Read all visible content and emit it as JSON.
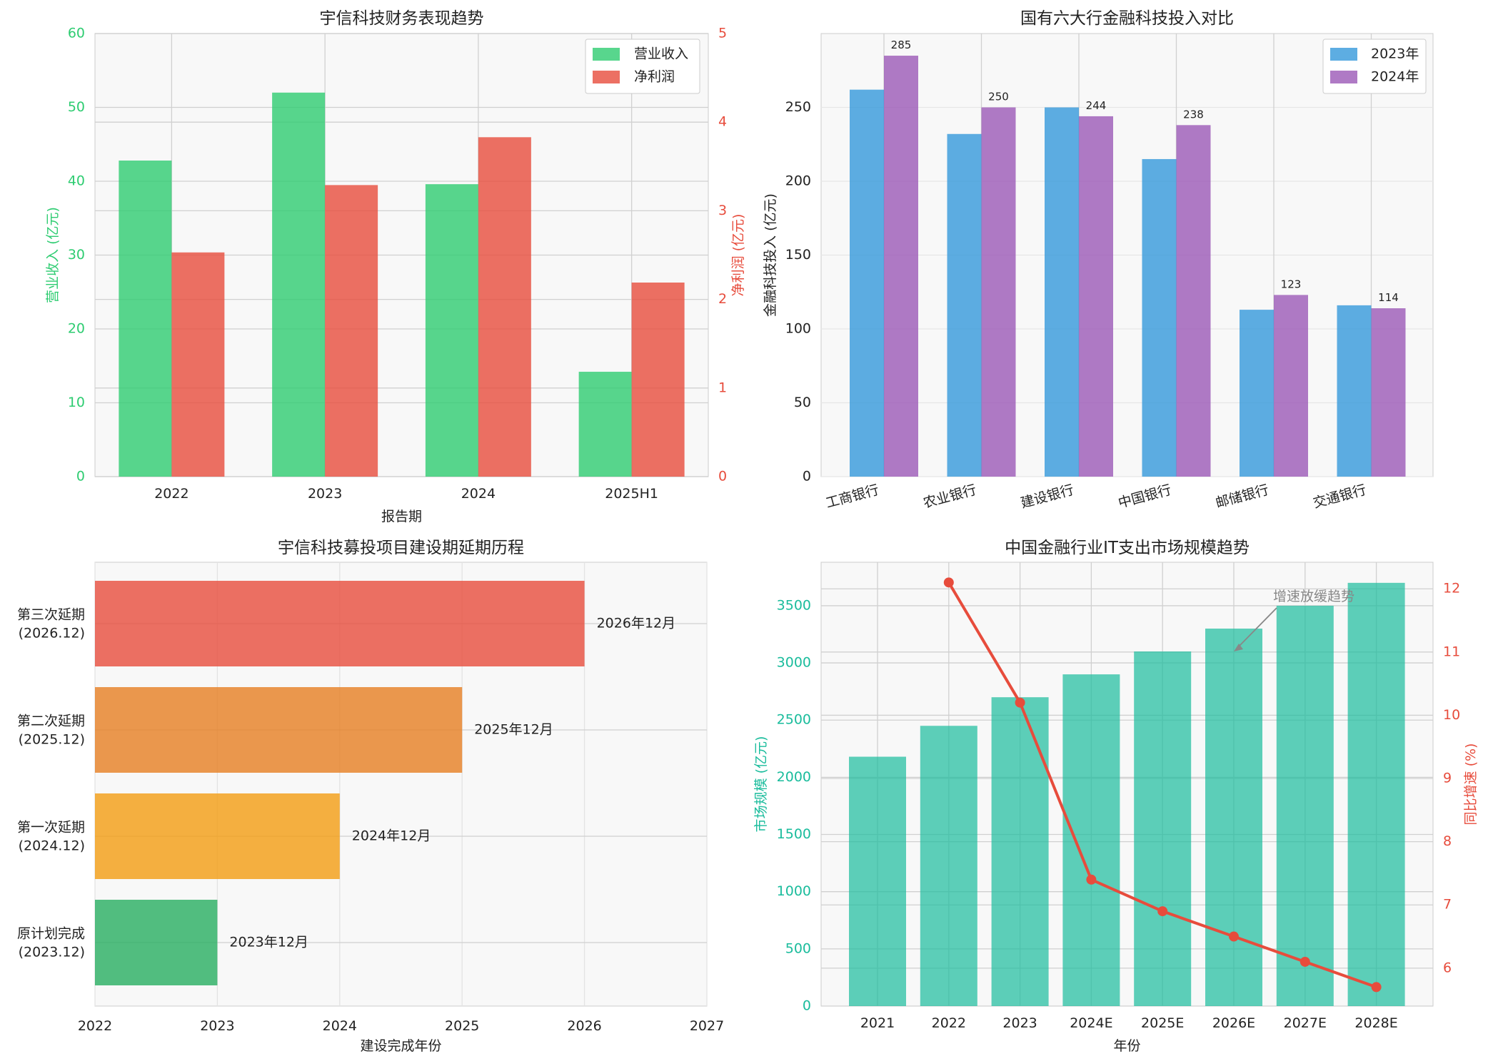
{
  "chart_data": [
    {
      "type": "bar",
      "title": "宇信科技财务表现趋势",
      "xlabel": "报告期",
      "ylabel_left": "营业收入 (亿元)",
      "ylabel_right": "净利润 (亿元)",
      "categories": [
        "2022",
        "2023",
        "2024",
        "2025H1"
      ],
      "series": [
        {
          "name": "营业收入",
          "axis": "left",
          "color": "#2ecc71",
          "values": [
            42.8,
            52.0,
            39.6,
            14.2
          ]
        },
        {
          "name": "净利润",
          "axis": "right",
          "color": "#e74c3c",
          "values": [
            2.53,
            3.29,
            3.83,
            2.19
          ]
        }
      ],
      "ylim_left": [
        0,
        60
      ],
      "yticks_left": [
        "0",
        "10",
        "20",
        "30",
        "40",
        "50",
        "60"
      ],
      "ylim_right": [
        0,
        5
      ],
      "yticks_right": [
        "0",
        "1",
        "2",
        "3",
        "4",
        "5"
      ],
      "legend": "top-right",
      "grid": true
    },
    {
      "type": "bar",
      "title": "国有六大行金融科技投入对比",
      "xlabel": "",
      "ylabel": "金融科技投入 (亿元)",
      "categories": [
        "工商银行",
        "农业银行",
        "建设银行",
        "中国银行",
        "邮储银行",
        "交通银行"
      ],
      "series": [
        {
          "name": "2023年",
          "color": "#3498db",
          "values": [
            262,
            232,
            250,
            215,
            113,
            116
          ]
        },
        {
          "name": "2024年",
          "color": "#9b59b6",
          "values": [
            285,
            250,
            244,
            238,
            123,
            114
          ],
          "labels": [
            "285",
            "250",
            "244",
            "238",
            "123",
            "114"
          ]
        }
      ],
      "ylim": [
        0,
        300
      ],
      "yticks": [
        "0",
        "50",
        "100",
        "150",
        "200",
        "250"
      ],
      "legend": "top-right",
      "grid": true
    },
    {
      "type": "bar",
      "orientation": "horizontal",
      "title": "宇信科技募投项目建设期延期历程",
      "xlabel": "建设完成年份",
      "categories": [
        {
          "line1": "原计划完成",
          "line2": "(2023.12)"
        },
        {
          "line1": "第一次延期",
          "line2": "(2024.12)"
        },
        {
          "line1": "第二次延期",
          "line2": "(2025.12)"
        },
        {
          "line1": "第三次延期",
          "line2": "(2026.12)"
        }
      ],
      "values": [
        2023,
        2024,
        2025,
        2026
      ],
      "colors": [
        "#27ae60",
        "#f39c12",
        "#e67e22",
        "#e74c3c"
      ],
      "value_labels": [
        "2023年12月",
        "2024年12月",
        "2025年12月",
        "2026年12月"
      ],
      "xlim": [
        2022,
        2027
      ],
      "xticks": [
        "2022",
        "2023",
        "2024",
        "2025",
        "2026",
        "2027"
      ],
      "grid": true
    },
    {
      "type": "bar+line",
      "title": "中国金融行业IT支出市场规模趋势",
      "xlabel": "年份",
      "ylabel_left": "市场规模 (亿元)",
      "ylabel_right": "同比增速 (%)",
      "categories": [
        "2021",
        "2022",
        "2023",
        "2024E",
        "2025E",
        "2026E",
        "2027E",
        "2028E"
      ],
      "bars": {
        "name": "市场规模",
        "color": "#1abc9c",
        "values": [
          2180,
          2450,
          2700,
          2900,
          3100,
          3300,
          3500,
          3700
        ]
      },
      "line": {
        "name": "同比增速",
        "color": "#e74c3c",
        "x": [
          "2022",
          "2023",
          "2024E",
          "2025E",
          "2026E",
          "2027E",
          "2028E"
        ],
        "values": [
          12.1,
          10.2,
          7.4,
          6.9,
          6.5,
          6.1,
          5.7
        ]
      },
      "ylim_left": [
        0,
        3880
      ],
      "yticks_left": [
        "0",
        "500",
        "1000",
        "1500",
        "2000",
        "2500",
        "3000",
        "3500"
      ],
      "ylim_right": [
        5.4,
        12.42
      ],
      "yticks_right": [
        "6",
        "7",
        "8",
        "9",
        "10",
        "11",
        "12"
      ],
      "annotation": {
        "text": "增速放缓趋势",
        "target_category": "2026E",
        "target_value": 3100
      },
      "grid": true
    }
  ]
}
